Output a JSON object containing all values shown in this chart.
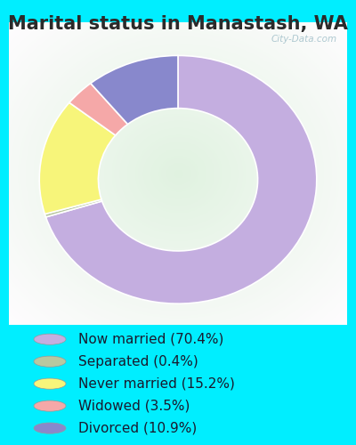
{
  "title": "Marital status in Manastash, WA",
  "segments": [
    {
      "label": "Now married (70.4%)",
      "value": 70.4,
      "color": "#c4aee0"
    },
    {
      "label": "Separated (0.4%)",
      "value": 0.4,
      "color": "#b8c8a0"
    },
    {
      "label": "Never married (15.2%)",
      "value": 15.2,
      "color": "#f7f57a"
    },
    {
      "label": "Widowed (3.5%)",
      "value": 3.5,
      "color": "#f5a8a8"
    },
    {
      "label": "Divorced (10.9%)",
      "value": 10.9,
      "color": "#8888cc"
    }
  ],
  "title_fontsize": 15,
  "title_color": "#2a2a2a",
  "background_color_outer": "#00eeff",
  "legend_fontsize": 11,
  "watermark": "City-Data.com",
  "start_angle": 90
}
